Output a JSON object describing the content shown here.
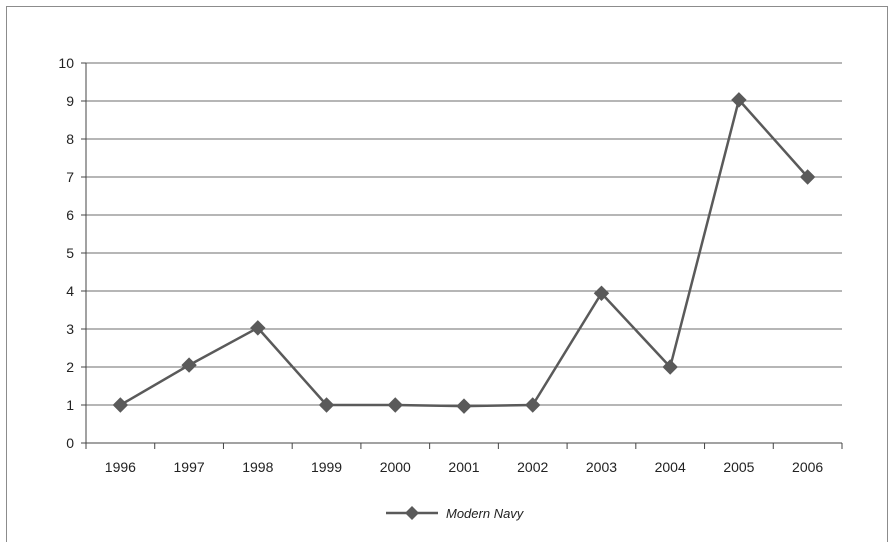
{
  "chart_data": {
    "type": "line",
    "title": "",
    "xlabel": "",
    "ylabel": "",
    "categories": [
      "1996",
      "1997",
      "1998",
      "1999",
      "2000",
      "2001",
      "2002",
      "2003",
      "2004",
      "2005",
      "2006"
    ],
    "series": [
      {
        "name": "Modern Navy",
        "values": [
          1,
          2.05,
          3.03,
          1,
          1,
          0.97,
          1,
          3.94,
          2,
          9.03,
          7
        ]
      }
    ],
    "ylim": [
      0,
      10
    ],
    "yticks": [
      "0",
      "1",
      "2",
      "3",
      "4",
      "5",
      "6",
      "7",
      "8",
      "9",
      "10"
    ],
    "grid": true,
    "legend_position": "bottom",
    "colors": {
      "series": "#5a5a5a",
      "grid": "#6e6e6e",
      "axis": "#444444"
    },
    "marker": "diamond"
  }
}
